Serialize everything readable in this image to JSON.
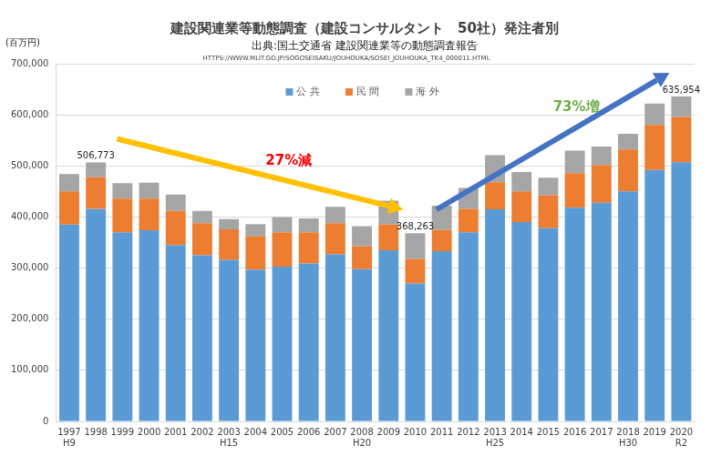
{
  "chart_data": {
    "type": "bar",
    "title": "建設関連業等動態調査（建設コンサルタント　50社）発注者別",
    "subtitle": [
      "出典:国土交通省 建設関連業等の動態調査報告",
      "HTTPS://WWW.MLIT.GO.JP/SOGOSEISAKU/JOUHOUKA/SOSEI_JOUHOUKA_TK4_000011.HTML"
    ],
    "y_label": "(百万円)",
    "categories": [
      "1997",
      "1998",
      "1999",
      "2000",
      "2001",
      "2002",
      "2003",
      "2004",
      "2005",
      "2006",
      "2007",
      "2008",
      "2009",
      "2010",
      "2011",
      "2012",
      "2013",
      "2014",
      "2015",
      "2016",
      "2017",
      "2018",
      "2019",
      "2020"
    ],
    "category_sublabels": [
      "H9",
      null,
      null,
      null,
      null,
      null,
      "H15",
      null,
      null,
      null,
      null,
      "H20",
      null,
      null,
      null,
      null,
      "H25",
      null,
      null,
      null,
      null,
      "H30",
      null,
      "R2"
    ],
    "series": [
      {
        "name": "公 共",
        "color": "#5b9bd5",
        "values": [
          385000,
          416000,
          370000,
          374000,
          345000,
          325000,
          316000,
          297000,
          303000,
          309000,
          327000,
          298000,
          335000,
          270000,
          333000,
          370000,
          415000,
          390000,
          378000,
          418000,
          428000,
          450000,
          492000,
          507000
        ]
      },
      {
        "name": "民 間",
        "color": "#ed7d31",
        "values": [
          65000,
          62000,
          66000,
          62000,
          67000,
          63000,
          60000,
          65000,
          67000,
          61000,
          61000,
          45000,
          50000,
          48000,
          42000,
          46000,
          53000,
          60000,
          64000,
          68000,
          74000,
          82000,
          88000,
          89000
        ]
      },
      {
        "name": "海 外",
        "color": "#a5a5a5",
        "values": [
          34000,
          28773,
          30000,
          31000,
          32000,
          24000,
          20000,
          24000,
          30000,
          27000,
          32000,
          39000,
          47000,
          50263,
          47000,
          41000,
          53000,
          38000,
          35000,
          44000,
          36000,
          31000,
          42000,
          39954
        ]
      }
    ],
    "stacked": true,
    "ylim": [
      0,
      700000
    ],
    "yticks": [
      0,
      {
        "value": 100000,
        "label": "100,000"
      },
      {
        "value": 200000,
        "label": "200,000"
      },
      {
        "value": 300000,
        "label": "300,000"
      },
      {
        "value": 400000,
        "label": "400,000"
      },
      {
        "value": 500000,
        "label": "500,000"
      },
      {
        "value": 600000,
        "label": "600,000"
      },
      {
        "value": 700000,
        "label": "700,000"
      }
    ],
    "grid": true,
    "legend": "top",
    "point_labels": [
      {
        "category": "1998",
        "value": 506773,
        "text": "506,773"
      },
      {
        "category": "2010",
        "value": 368263,
        "text": "368,263"
      },
      {
        "category": "2020",
        "value": 635954,
        "text": "635,954"
      }
    ],
    "trends": [
      {
        "from": "1998",
        "to": "2010",
        "label": "27%減"
      },
      {
        "from": "2010",
        "to": "2020",
        "label": "73%増"
      }
    ]
  }
}
